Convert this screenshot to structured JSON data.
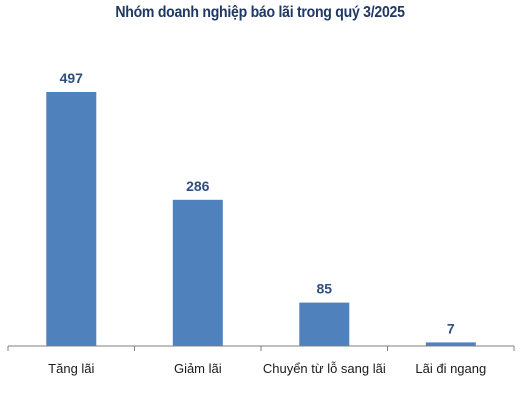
{
  "chart_data": {
    "type": "bar",
    "title": "Nhóm doanh nghiệp báo lãi trong quý 3/2025",
    "categories": [
      "Tăng lãi",
      "Giảm lãi",
      "Chuyển từ lỗ sang lãi",
      "Lãi đi ngang"
    ],
    "values": [
      497,
      286,
      85,
      7
    ],
    "xlabel": "",
    "ylabel": "",
    "ylim": [
      0,
      520
    ],
    "grid": false,
    "legend": "none",
    "bar_color": "#4f81bd",
    "label_color": "#2f4f7f",
    "title_color": "#1f3864"
  }
}
